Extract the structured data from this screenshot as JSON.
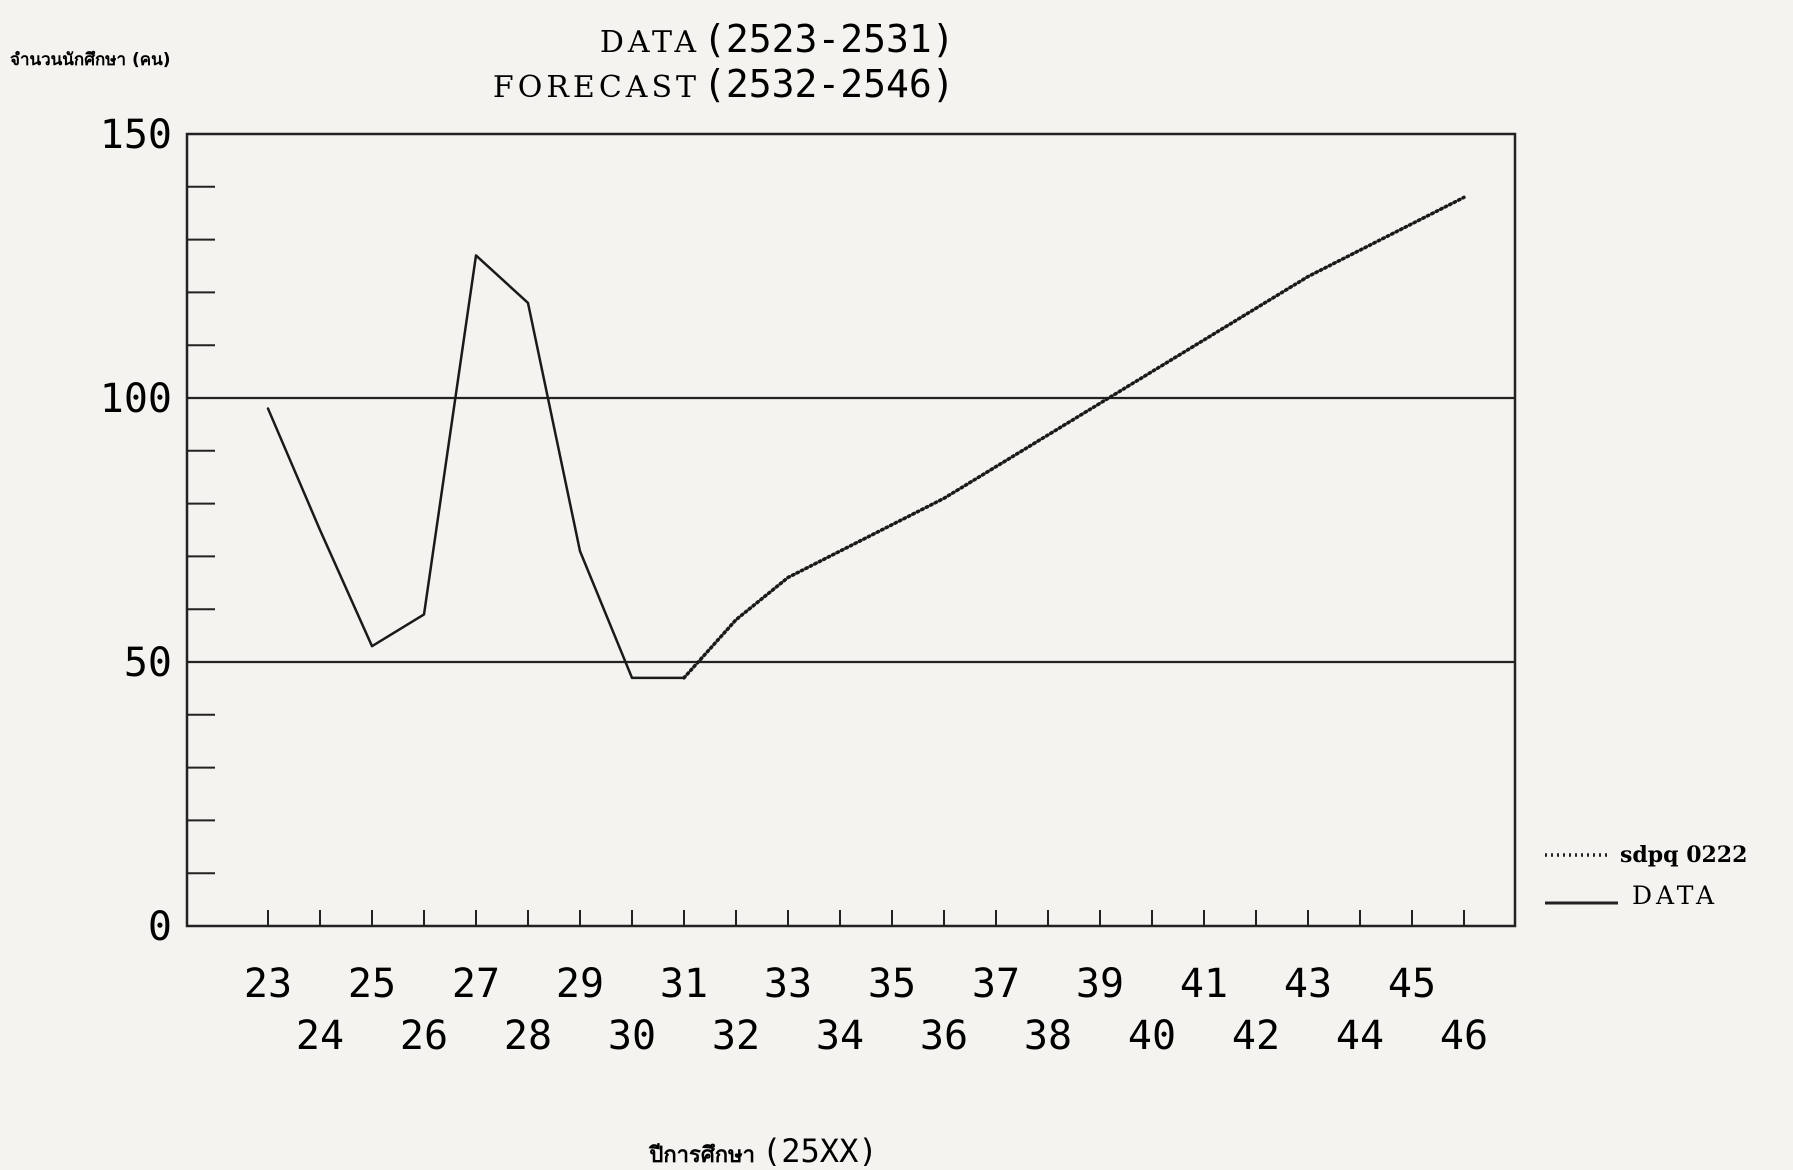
{
  "chart_data": {
    "type": "line",
    "title_line1_word": "DATA",
    "title_line1_range": "(2523-2531)",
    "title_line2_word": "FORECAST",
    "title_line2_range": "(2532-2546)",
    "ylabel": "จำนวนนักศึกษา (คน)",
    "xlabel_thai": "ปีการศึกษา",
    "xlabel_unit": "(25XX)",
    "ylim": [
      0,
      150
    ],
    "yticks": [
      "0",
      "50",
      "100",
      "150"
    ],
    "xlim": [
      23,
      46
    ],
    "xticks_upper": [
      "23",
      "25",
      "27",
      "29",
      "31",
      "33",
      "35",
      "37",
      "39",
      "41",
      "43",
      "45"
    ],
    "xticks_lower": [
      "24",
      "26",
      "28",
      "30",
      "32",
      "34",
      "36",
      "38",
      "40",
      "42",
      "44",
      "46"
    ],
    "reference_lines": [
      50,
      100
    ],
    "grid": false,
    "legend_position": "right",
    "series": [
      {
        "name": "DATA",
        "style": "solid",
        "x": [
          23,
          24,
          25,
          26,
          27,
          28,
          29,
          30,
          31
        ],
        "values": [
          98,
          75,
          53,
          59,
          127,
          118,
          71,
          47,
          47
        ]
      },
      {
        "name": "sdpq 0222",
        "style": "dotted",
        "x": [
          31,
          32,
          33,
          34,
          35,
          36,
          37,
          38,
          39,
          40,
          41,
          42,
          43,
          44,
          45,
          46
        ],
        "values": [
          47,
          58,
          66,
          71,
          76,
          81,
          87,
          93,
          99,
          105,
          111,
          117,
          123,
          128,
          133,
          138
        ]
      }
    ]
  }
}
